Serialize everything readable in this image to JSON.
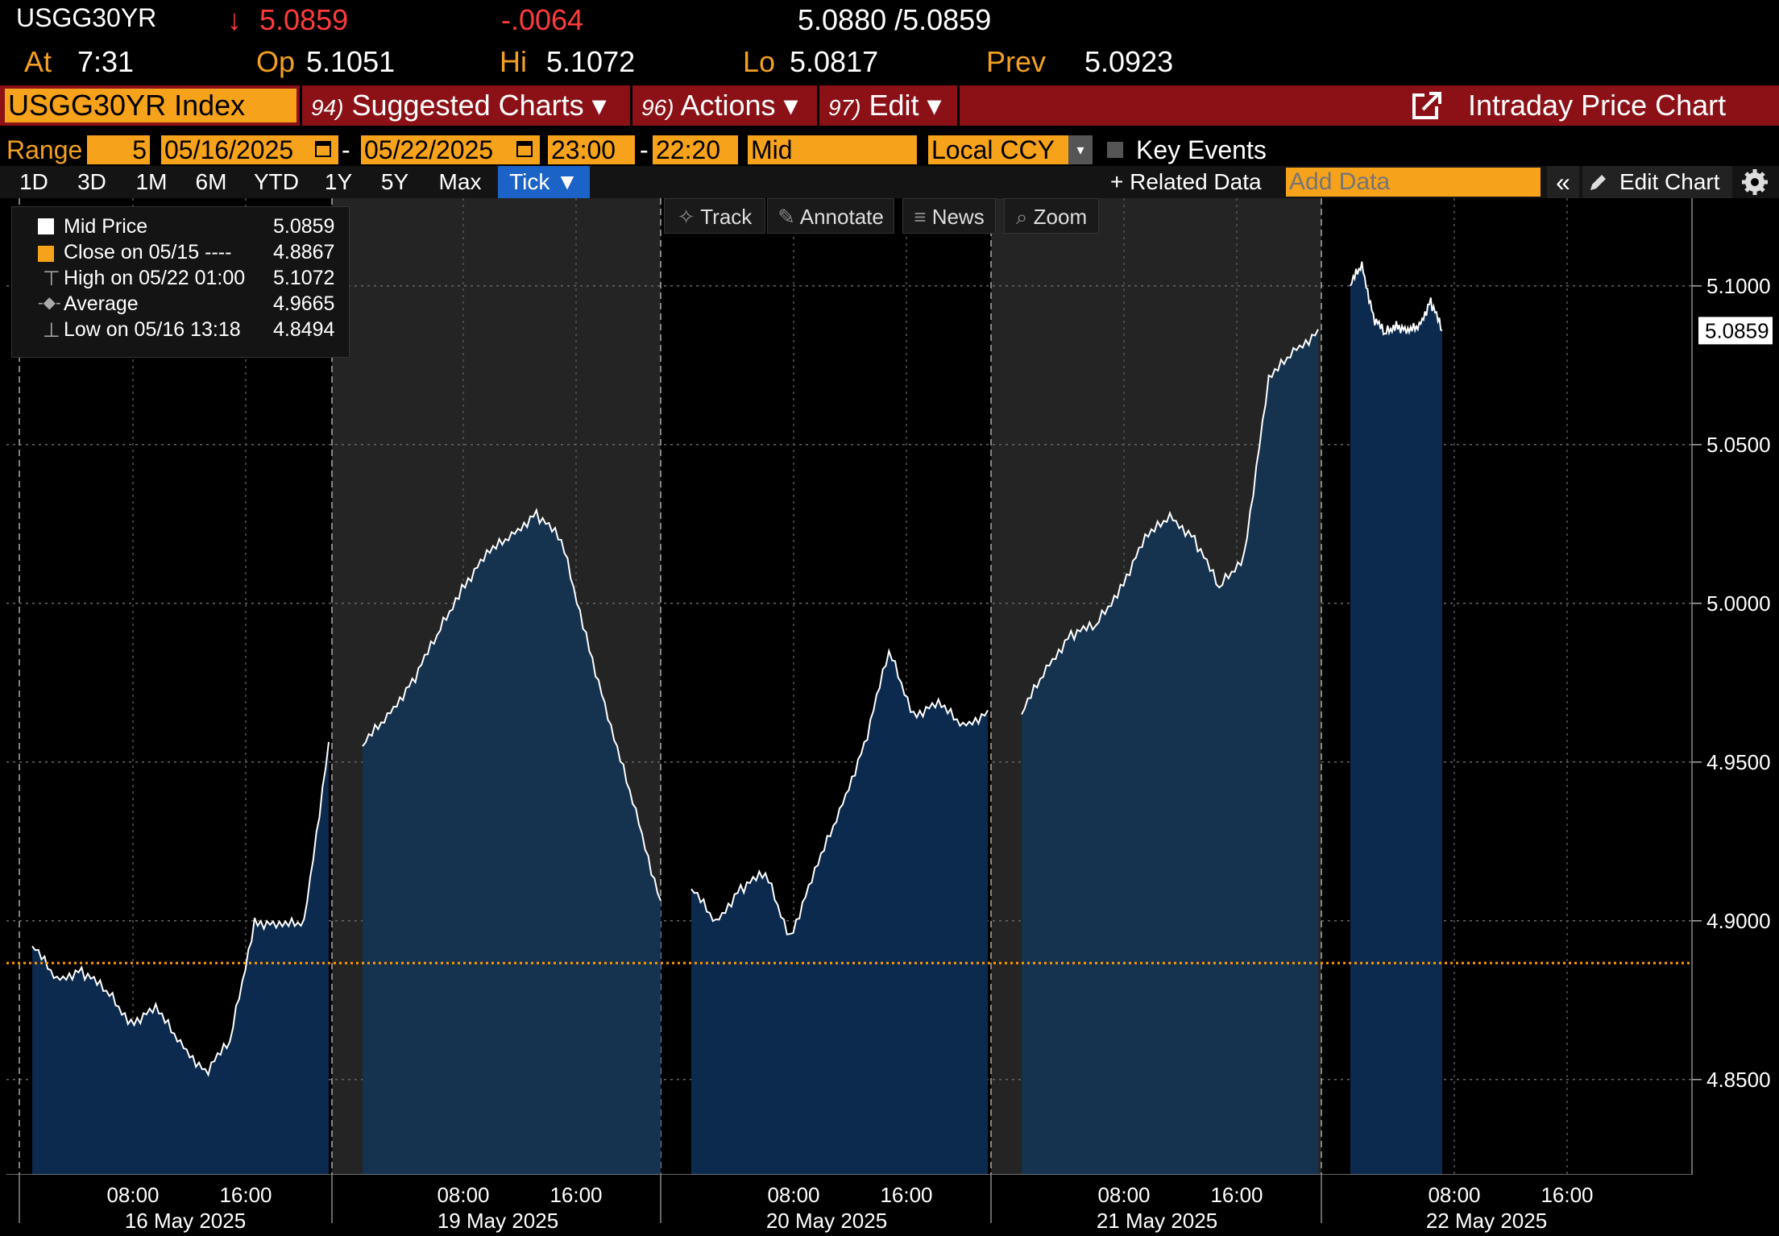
{
  "header": {
    "ticker": "USGG30YR",
    "arrow": "↓",
    "last": "5.0859",
    "change": "-.0064",
    "bid_ask": "5.0880 /5.0859",
    "at_label": "At",
    "time": "7:31",
    "op_label": "Op",
    "open": "5.1051",
    "hi_label": "Hi",
    "high": "5.1072",
    "lo_label": "Lo",
    "low": "5.0817",
    "prev_label": "Prev",
    "prev": "5.0923"
  },
  "titlebar": {
    "security": "USGG30YR Index",
    "menu": [
      {
        "num": "94)",
        "label": "Suggested Charts ▾"
      },
      {
        "num": "96)",
        "label": "Actions ▾"
      },
      {
        "num": "97)",
        "label": "Edit ▾"
      }
    ],
    "chart_title": "Intraday Price Chart",
    "export_icon": "export-icon"
  },
  "range_row": {
    "range_label": "Range",
    "days": "5",
    "start_date": "05/16/2025",
    "dash": "-",
    "end_date": "05/22/2025",
    "start_time": "23:00",
    "end_time": "22:20",
    "field": "Mid",
    "currency": "Local CCY",
    "key_events": "Key Events"
  },
  "tabs": [
    "1D",
    "3D",
    "1M",
    "6M",
    "YTD",
    "1Y",
    "5Y",
    "Max",
    "Tick ▼"
  ],
  "right_tools": {
    "related": "+ Related Data",
    "add_data_placeholder": "Add Data",
    "collapse": "«",
    "edit_chart": "Edit Chart"
  },
  "chart_tools": [
    "Track",
    "Annotate",
    "News",
    "Zoom"
  ],
  "legend": [
    {
      "label": "Mid Price",
      "value": "5.0859"
    },
    {
      "label": "Close on 05/15 ----",
      "value": "4.8867"
    },
    {
      "label": "High on 05/22 01:00",
      "value": "5.1072"
    },
    {
      "label": "Average",
      "value": "4.9665"
    },
    {
      "label": "Low on 05/16 13:18",
      "value": "4.8494"
    }
  ],
  "colors": {
    "accent": "#f7a21b",
    "titlebar": "#8c1117",
    "area_fill": "#0c2a4d",
    "shade": "#242424",
    "close_line": "#ff9900",
    "down": "#ff3b3b"
  },
  "chart_data": {
    "type": "line",
    "ylim": [
      4.82,
      5.11
    ],
    "yticks": [
      "5.1000",
      "5.0500",
      "5.0000",
      "4.9500",
      "4.9000",
      "4.8500"
    ],
    "ytick_values": [
      5.1,
      5.05,
      5.0,
      4.95,
      4.9,
      4.85
    ],
    "last_label": "5.0859",
    "last_value": 5.0859,
    "prev_close": 4.8867,
    "x_time_ticks": [
      "08:00",
      "16:00",
      "08:00",
      "16:00",
      "08:00",
      "16:00",
      "08:00",
      "16:00",
      "08:00",
      "16:00"
    ],
    "x_date_labels": [
      "16 May 2025",
      "19 May 2025",
      "20 May 2025",
      "21 May 2025",
      "22 May 2025"
    ],
    "series": [
      {
        "x": [
          "05/16 00:00",
          "05/16 02:00",
          "05/16 04:00",
          "05/16 06:00",
          "05/16 08:00",
          "05/16 10:00",
          "05/16 12:00",
          "05/16 13:18",
          "05/16 15:00",
          "05/16 16:00",
          "05/16 18:00",
          "05/16 20:00",
          "05/16 21:30"
        ],
        "y": [
          4.892,
          4.882,
          4.884,
          4.878,
          4.868,
          4.872,
          4.862,
          4.852,
          4.862,
          4.9,
          4.898,
          4.9,
          4.955
        ]
      },
      {
        "x": [
          "05/19 00:00",
          "05/19 02:00",
          "05/19 04:00",
          "05/19 06:00",
          "05/19 08:00",
          "05/19 10:00",
          "05/19 12:00",
          "05/19 13:00",
          "05/19 14:00",
          "05/19 16:00",
          "05/19 18:00",
          "05/19 20:00",
          "05/19 22:00"
        ],
        "y": [
          4.955,
          4.965,
          4.975,
          4.99,
          5.005,
          5.015,
          5.022,
          5.028,
          5.02,
          4.99,
          4.96,
          4.935,
          4.905
        ]
      },
      {
        "x": [
          "05/20 00:00",
          "05/20 02:00",
          "05/20 04:00",
          "05/20 06:00",
          "05/20 08:00",
          "05/20 10:00",
          "05/20 12:00",
          "05/20 14:00",
          "05/20 15:00",
          "05/20 16:00",
          "05/20 18:00",
          "05/20 20:00",
          "05/20 22:00"
        ],
        "y": [
          4.91,
          4.9,
          4.91,
          4.915,
          4.895,
          4.915,
          4.935,
          4.955,
          4.985,
          4.965,
          4.968,
          4.962,
          4.965
        ]
      },
      {
        "x": [
          "05/21 00:00",
          "05/21 02:00",
          "05/21 04:00",
          "05/21 06:00",
          "05/21 08:00",
          "05/21 10:00",
          "05/21 12:00",
          "05/21 14:00",
          "05/21 16:00",
          "05/21 17:00",
          "05/21 18:00",
          "05/21 20:00",
          "05/21 22:00"
        ],
        "y": [
          4.965,
          4.98,
          4.99,
          4.993,
          5.005,
          5.02,
          5.028,
          5.02,
          5.005,
          5.015,
          5.07,
          5.08,
          5.085
        ]
      },
      {
        "x": [
          "05/22 00:00",
          "05/22 01:00",
          "05/22 02:00",
          "05/22 03:00",
          "05/22 04:00",
          "05/22 05:00",
          "05/22 06:00",
          "05/22 07:00",
          "05/22 07:31"
        ],
        "y": [
          5.1,
          5.1072,
          5.09,
          5.085,
          5.088,
          5.085,
          5.088,
          5.095,
          5.0859
        ]
      }
    ]
  }
}
